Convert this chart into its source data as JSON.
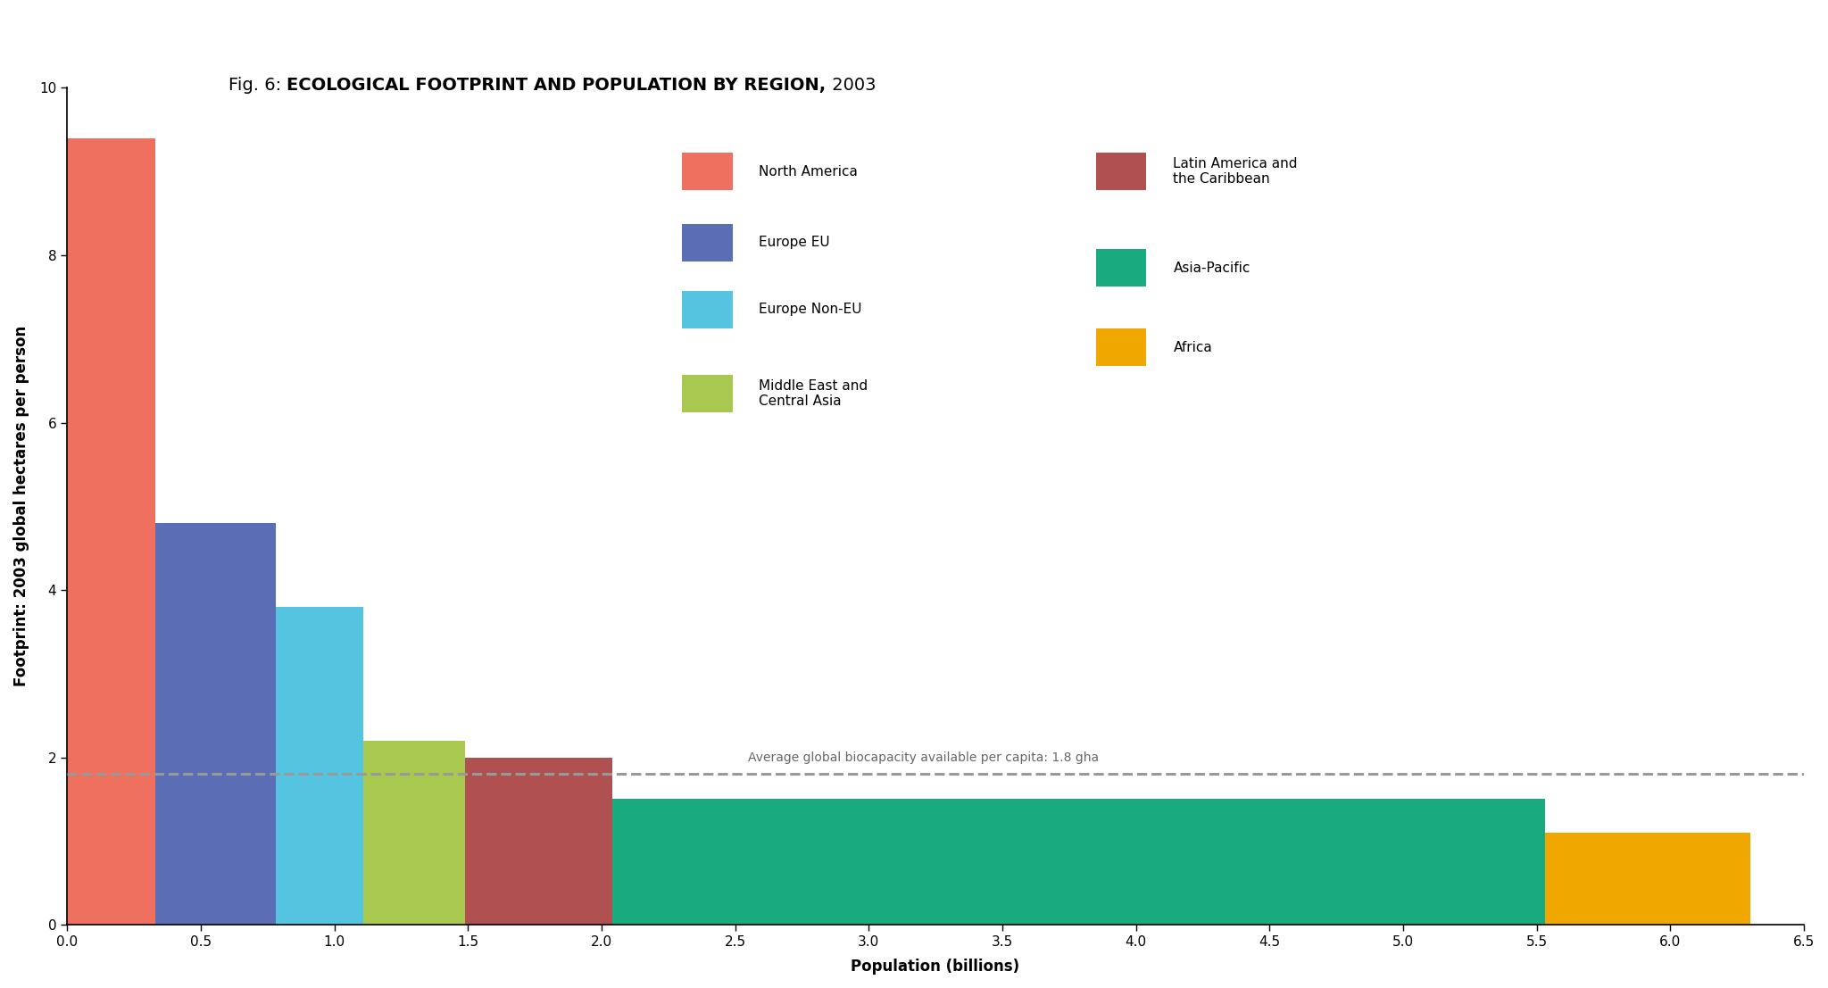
{
  "title_prefix": "Fig. 6: ",
  "title_bold": "ECOLOGICAL FOOTPRINT AND POPULATION BY REGION,",
  "title_year": " 2003",
  "xlabel": "Population (billions)",
  "ylabel": "Footprint: 2003 global hectares per person",
  "ylim": [
    0,
    10
  ],
  "xlim": [
    0,
    6.5
  ],
  "biocapacity_line": 1.8,
  "biocapacity_label": "Average global biocapacity available per capita: 1.8 gha",
  "regions": [
    {
      "name": "North America",
      "population": 0.33,
      "footprint": 9.4,
      "color": "#F07060",
      "x_start": 0.0
    },
    {
      "name": "Europe EU",
      "population": 0.45,
      "footprint": 4.8,
      "color": "#5B6EB5",
      "x_start": 0.33
    },
    {
      "name": "Europe Non-EU",
      "population": 0.33,
      "footprint": 3.8,
      "color": "#55C4E0",
      "x_start": 0.78
    },
    {
      "name": "Middle East and\nCentral Asia",
      "population": 0.38,
      "footprint": 2.2,
      "color": "#A8C850",
      "x_start": 1.11
    },
    {
      "name": "Latin America and\nthe Caribbean",
      "population": 0.55,
      "footprint": 2.0,
      "color": "#B05050",
      "x_start": 1.49
    },
    {
      "name": "Asia-Pacific",
      "population": 3.49,
      "footprint": 1.5,
      "color": "#1AAA80",
      "x_start": 2.04
    },
    {
      "name": "Africa",
      "population": 0.77,
      "footprint": 1.1,
      "color": "#F0A800",
      "x_start": 5.53
    }
  ],
  "legend_col1": [
    {
      "name": "North America",
      "color": "#F07060"
    },
    {
      "name": "Europe EU",
      "color": "#5B6EB5"
    },
    {
      "name": "Europe Non-EU",
      "color": "#55C4E0"
    },
    {
      "name": "Middle East and\nCentral Asia",
      "color": "#A8C850"
    }
  ],
  "legend_col2": [
    {
      "name": "Latin America and\nthe Caribbean",
      "color": "#B05050"
    },
    {
      "name": "Asia-Pacific",
      "color": "#1AAA80"
    },
    {
      "name": "Africa",
      "color": "#F0A800"
    }
  ],
  "background_color": "#FFFFFF",
  "dashed_line_color": "#999999",
  "title_fontsize": 14,
  "axis_label_fontsize": 12,
  "tick_fontsize": 11,
  "legend_fontsize": 11
}
